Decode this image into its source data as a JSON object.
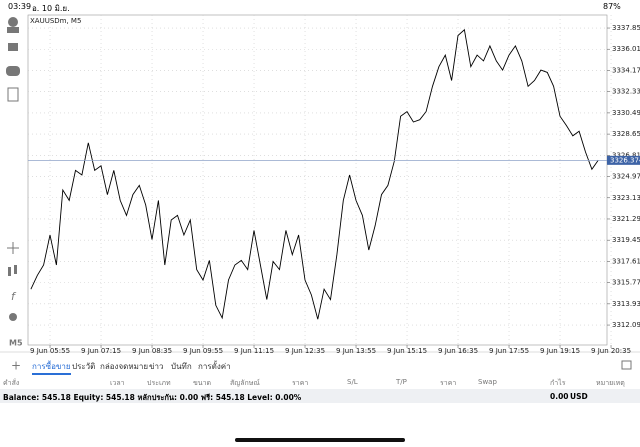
{
  "status": {
    "time": "03:39",
    "date": "อ. 10 มิ.ย.",
    "battery": "87%"
  },
  "sidebar": {
    "timeframe": "M5"
  },
  "chart_data": {
    "type": "line",
    "title": "XAUUSDm, M5",
    "color": "#000000",
    "grid": true,
    "categories": [
      null,
      null,
      null,
      "9 Jun 05:55",
      null,
      null,
      null,
      null,
      null,
      null,
      null,
      "9 Jun 07:15",
      null,
      null,
      null,
      null,
      null,
      null,
      null,
      "9 Jun 08:35",
      null,
      null,
      null,
      null,
      null,
      null,
      null,
      "9 Jun 09:55",
      null,
      null,
      null,
      null,
      null,
      null,
      null,
      "9 Jun 11:15",
      null,
      null,
      null,
      null,
      null,
      null,
      null,
      "9 Jun 12:35",
      null,
      null,
      null,
      null,
      null,
      null,
      null,
      "9 Jun 13:55",
      null,
      null,
      null,
      null,
      null,
      null,
      null,
      "9 Jun 15:15",
      null,
      null,
      null,
      null,
      null,
      null,
      null,
      "9 Jun 16:35",
      null,
      null,
      null,
      null,
      null,
      null,
      null,
      "9 Jun 17:55",
      null,
      null,
      null,
      null,
      null,
      null,
      null,
      "9 Jun 19:15",
      null,
      null,
      null,
      null,
      null,
      null,
      null,
      "9 Jun 20:35"
    ],
    "values": [
      3315.2,
      3316.4,
      3317.3,
      3319.9,
      3317.3,
      3323.8,
      3322.9,
      3325.5,
      3325.1,
      3327.9,
      3325.5,
      3325.9,
      3323.4,
      3325.5,
      3322.9,
      3321.6,
      3323.4,
      3324.2,
      3322.5,
      3319.5,
      3322.9,
      3317.3,
      3321.2,
      3321.6,
      3319.9,
      3321.2,
      3316.9,
      3316.0,
      3317.7,
      3313.8,
      3312.7,
      3316.0,
      3317.3,
      3317.7,
      3316.9,
      3320.3,
      3317.3,
      3314.3,
      3317.6,
      3316.9,
      3320.3,
      3318.2,
      3319.9,
      3316.0,
      3314.7,
      3312.6,
      3315.2,
      3314.3,
      3318.2,
      3322.9,
      3325.1,
      3322.9,
      3321.6,
      3318.6,
      3320.7,
      3323.4,
      3324.2,
      3326.3,
      3330.2,
      3330.6,
      3329.7,
      3329.9,
      3330.6,
      3332.8,
      3334.5,
      3335.5,
      3333.3,
      3337.2,
      3337.7,
      3334.5,
      3335.5,
      3335.0,
      3336.3,
      3335.0,
      3334.2,
      3335.5,
      3336.3,
      3335.0,
      3332.8,
      3333.3,
      3334.2,
      3334.0,
      3332.8,
      3330.2,
      3329.4,
      3328.5,
      3328.9,
      3327.1,
      3325.6,
      3326.4,
      null,
      null
    ],
    "current_price": 3326.374,
    "ylim": [
      3310.36,
      3338.98
    ],
    "yticks": [
      {
        "value": 3312.09,
        "label": "3312.090"
      },
      {
        "value": 3313.93,
        "label": "3313.930"
      },
      {
        "value": 3315.77,
        "label": "3315.770"
      },
      {
        "value": 3317.61,
        "label": "3317.610"
      },
      {
        "value": 3319.45,
        "label": "3319.450"
      },
      {
        "value": 3321.29,
        "label": "3321.290"
      },
      {
        "value": 3323.13,
        "label": "3323.130"
      },
      {
        "value": 3324.97,
        "label": "3324.970"
      },
      {
        "value": 3326.81,
        "label": "3326.810"
      },
      {
        "value": 3328.65,
        "label": "3328.650"
      },
      {
        "value": 3330.49,
        "label": "3330.490"
      },
      {
        "value": 3332.33,
        "label": "3332.330"
      },
      {
        "value": 3334.17,
        "label": "3334.170"
      },
      {
        "value": 3336.01,
        "label": "3336.010"
      },
      {
        "value": 3337.85,
        "label": "3337.850"
      }
    ]
  },
  "tabs": [
    "การซื้อขาย",
    "ประวัติ",
    "กล่องจดหมาย",
    "ข่าว",
    "บันทึก",
    "การตั้งค่า"
  ],
  "columns": [
    "คำสั่ง",
    "เวลา",
    "ประเภท",
    "ขนาด",
    "สัญลักษณ์",
    "ราคา",
    "S/L",
    "T/P",
    "ราคา",
    "Swap",
    "กำไร",
    "หมายเหตุ"
  ],
  "footer": {
    "summary": "Balance: 545.18 Equity: 545.18 หลักประกัน: 0.00 ฟรี: 545.18 Level: 0.00%",
    "profit": "0.00",
    "currency": "USD"
  }
}
